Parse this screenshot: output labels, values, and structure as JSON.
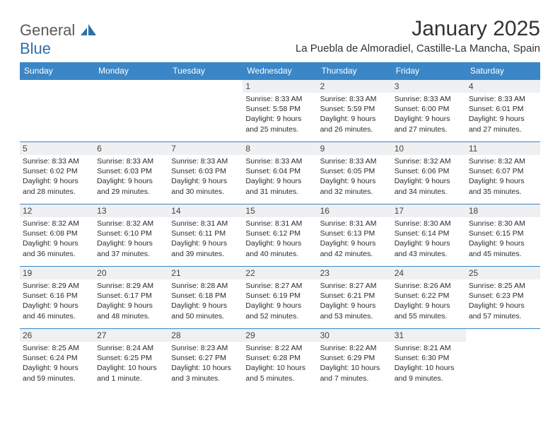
{
  "brand": {
    "word1": "General",
    "word2": "Blue"
  },
  "header": {
    "month_title": "January 2025",
    "location": "La Puebla de Almoradiel, Castille-La Mancha, Spain"
  },
  "colors": {
    "header_bg": "#3b86c6",
    "header_text": "#ffffff",
    "daynum_bg": "#eef0f2",
    "cell_border": "#3b86c6",
    "body_text": "#2b2b2b",
    "title_text": "#333333",
    "logo_gray": "#5a5a5a",
    "logo_blue": "#2f6fa8"
  },
  "days_of_week": [
    "Sunday",
    "Monday",
    "Tuesday",
    "Wednesday",
    "Thursday",
    "Friday",
    "Saturday"
  ],
  "weeks": [
    [
      {
        "blank": true
      },
      {
        "blank": true
      },
      {
        "blank": true
      },
      {
        "n": "1",
        "sunrise": "8:33 AM",
        "sunset": "5:58 PM",
        "dl1": "Daylight: 9 hours",
        "dl2": "and 25 minutes."
      },
      {
        "n": "2",
        "sunrise": "8:33 AM",
        "sunset": "5:59 PM",
        "dl1": "Daylight: 9 hours",
        "dl2": "and 26 minutes."
      },
      {
        "n": "3",
        "sunrise": "8:33 AM",
        "sunset": "6:00 PM",
        "dl1": "Daylight: 9 hours",
        "dl2": "and 27 minutes."
      },
      {
        "n": "4",
        "sunrise": "8:33 AM",
        "sunset": "6:01 PM",
        "dl1": "Daylight: 9 hours",
        "dl2": "and 27 minutes."
      }
    ],
    [
      {
        "n": "5",
        "sunrise": "8:33 AM",
        "sunset": "6:02 PM",
        "dl1": "Daylight: 9 hours",
        "dl2": "and 28 minutes."
      },
      {
        "n": "6",
        "sunrise": "8:33 AM",
        "sunset": "6:03 PM",
        "dl1": "Daylight: 9 hours",
        "dl2": "and 29 minutes."
      },
      {
        "n": "7",
        "sunrise": "8:33 AM",
        "sunset": "6:03 PM",
        "dl1": "Daylight: 9 hours",
        "dl2": "and 30 minutes."
      },
      {
        "n": "8",
        "sunrise": "8:33 AM",
        "sunset": "6:04 PM",
        "dl1": "Daylight: 9 hours",
        "dl2": "and 31 minutes."
      },
      {
        "n": "9",
        "sunrise": "8:33 AM",
        "sunset": "6:05 PM",
        "dl1": "Daylight: 9 hours",
        "dl2": "and 32 minutes."
      },
      {
        "n": "10",
        "sunrise": "8:32 AM",
        "sunset": "6:06 PM",
        "dl1": "Daylight: 9 hours",
        "dl2": "and 34 minutes."
      },
      {
        "n": "11",
        "sunrise": "8:32 AM",
        "sunset": "6:07 PM",
        "dl1": "Daylight: 9 hours",
        "dl2": "and 35 minutes."
      }
    ],
    [
      {
        "n": "12",
        "sunrise": "8:32 AM",
        "sunset": "6:08 PM",
        "dl1": "Daylight: 9 hours",
        "dl2": "and 36 minutes."
      },
      {
        "n": "13",
        "sunrise": "8:32 AM",
        "sunset": "6:10 PM",
        "dl1": "Daylight: 9 hours",
        "dl2": "and 37 minutes."
      },
      {
        "n": "14",
        "sunrise": "8:31 AM",
        "sunset": "6:11 PM",
        "dl1": "Daylight: 9 hours",
        "dl2": "and 39 minutes."
      },
      {
        "n": "15",
        "sunrise": "8:31 AM",
        "sunset": "6:12 PM",
        "dl1": "Daylight: 9 hours",
        "dl2": "and 40 minutes."
      },
      {
        "n": "16",
        "sunrise": "8:31 AM",
        "sunset": "6:13 PM",
        "dl1": "Daylight: 9 hours",
        "dl2": "and 42 minutes."
      },
      {
        "n": "17",
        "sunrise": "8:30 AM",
        "sunset": "6:14 PM",
        "dl1": "Daylight: 9 hours",
        "dl2": "and 43 minutes."
      },
      {
        "n": "18",
        "sunrise": "8:30 AM",
        "sunset": "6:15 PM",
        "dl1": "Daylight: 9 hours",
        "dl2": "and 45 minutes."
      }
    ],
    [
      {
        "n": "19",
        "sunrise": "8:29 AM",
        "sunset": "6:16 PM",
        "dl1": "Daylight: 9 hours",
        "dl2": "and 46 minutes."
      },
      {
        "n": "20",
        "sunrise": "8:29 AM",
        "sunset": "6:17 PM",
        "dl1": "Daylight: 9 hours",
        "dl2": "and 48 minutes."
      },
      {
        "n": "21",
        "sunrise": "8:28 AM",
        "sunset": "6:18 PM",
        "dl1": "Daylight: 9 hours",
        "dl2": "and 50 minutes."
      },
      {
        "n": "22",
        "sunrise": "8:27 AM",
        "sunset": "6:19 PM",
        "dl1": "Daylight: 9 hours",
        "dl2": "and 52 minutes."
      },
      {
        "n": "23",
        "sunrise": "8:27 AM",
        "sunset": "6:21 PM",
        "dl1": "Daylight: 9 hours",
        "dl2": "and 53 minutes."
      },
      {
        "n": "24",
        "sunrise": "8:26 AM",
        "sunset": "6:22 PM",
        "dl1": "Daylight: 9 hours",
        "dl2": "and 55 minutes."
      },
      {
        "n": "25",
        "sunrise": "8:25 AM",
        "sunset": "6:23 PM",
        "dl1": "Daylight: 9 hours",
        "dl2": "and 57 minutes."
      }
    ],
    [
      {
        "n": "26",
        "sunrise": "8:25 AM",
        "sunset": "6:24 PM",
        "dl1": "Daylight: 9 hours",
        "dl2": "and 59 minutes."
      },
      {
        "n": "27",
        "sunrise": "8:24 AM",
        "sunset": "6:25 PM",
        "dl1": "Daylight: 10 hours",
        "dl2": "and 1 minute."
      },
      {
        "n": "28",
        "sunrise": "8:23 AM",
        "sunset": "6:27 PM",
        "dl1": "Daylight: 10 hours",
        "dl2": "and 3 minutes."
      },
      {
        "n": "29",
        "sunrise": "8:22 AM",
        "sunset": "6:28 PM",
        "dl1": "Daylight: 10 hours",
        "dl2": "and 5 minutes."
      },
      {
        "n": "30",
        "sunrise": "8:22 AM",
        "sunset": "6:29 PM",
        "dl1": "Daylight: 10 hours",
        "dl2": "and 7 minutes."
      },
      {
        "n": "31",
        "sunrise": "8:21 AM",
        "sunset": "6:30 PM",
        "dl1": "Daylight: 10 hours",
        "dl2": "and 9 minutes."
      },
      {
        "blank": true
      }
    ]
  ],
  "labels": {
    "sunrise": "Sunrise: ",
    "sunset": "Sunset: "
  }
}
